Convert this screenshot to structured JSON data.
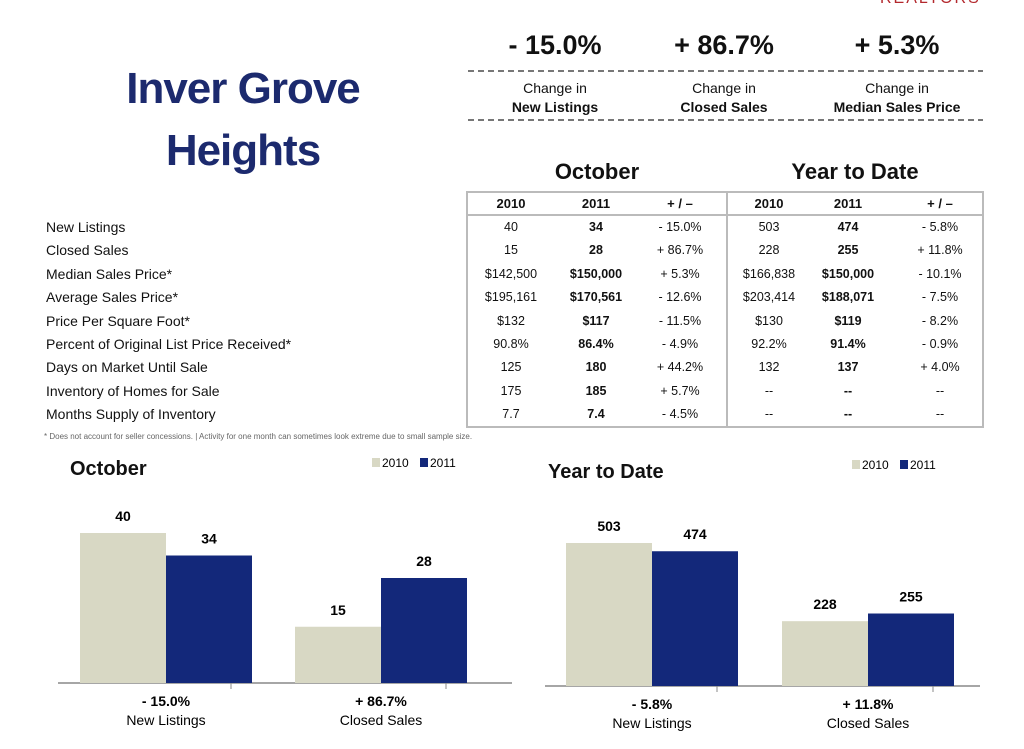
{
  "header": {
    "logo": "REALTORS",
    "title": "Inver Grove Heights"
  },
  "highlights": [
    {
      "value": "- 15.0%",
      "line1": "Change in",
      "line2": "New Listings"
    },
    {
      "value": "+ 86.7%",
      "line1": "Change in",
      "line2": "Closed Sales"
    },
    {
      "value": "+ 5.3%",
      "line1": "Change in",
      "line2": "Median Sales Price"
    }
  ],
  "table": {
    "groups": [
      "October",
      "Year to Date"
    ],
    "columns": [
      "2010",
      "2011",
      "+ / –",
      "2010",
      "2011",
      "+ / –"
    ],
    "rows": [
      [
        "New Listings",
        "40",
        "34",
        "- 15.0%",
        "503",
        "474",
        "- 5.8%"
      ],
      [
        "Closed Sales",
        "15",
        "28",
        "+ 86.7%",
        "228",
        "255",
        "+ 11.8%"
      ],
      [
        "Median Sales Price*",
        "$142,500",
        "$150,000",
        "+ 5.3%",
        "$166,838",
        "$150,000",
        "- 10.1%"
      ],
      [
        "Average Sales Price*",
        "$195,161",
        "$170,561",
        "- 12.6%",
        "$203,414",
        "$188,071",
        "- 7.5%"
      ],
      [
        "Price Per Square Foot*",
        "$132",
        "$117",
        "- 11.5%",
        "$130",
        "$119",
        "- 8.2%"
      ],
      [
        "Percent of Original List Price Received*",
        "90.8%",
        "86.4%",
        "- 4.9%",
        "92.2%",
        "91.4%",
        "- 0.9%"
      ],
      [
        "Days on Market Until Sale",
        "125",
        "180",
        "+ 44.2%",
        "132",
        "137",
        "+ 4.0%"
      ],
      [
        "Inventory of Homes for Sale",
        "175",
        "185",
        "+ 5.7%",
        "--",
        "--",
        "--"
      ],
      [
        "Months Supply of Inventory",
        "7.7",
        "7.4",
        "- 4.5%",
        "--",
        "--",
        "--"
      ]
    ],
    "footnote": "* Does not account for seller concessions.  |  Activity for one month can sometimes look extreme due to small sample size."
  },
  "charts": [
    {
      "type": "bar",
      "title": "October",
      "categories": [
        "New Listings",
        "Closed Sales"
      ],
      "changes": [
        "- 15.0%",
        "+ 86.7%"
      ],
      "series": [
        {
          "name": "2010",
          "color": "#d8d8c4",
          "values": [
            40,
            15
          ]
        },
        {
          "name": "2011",
          "color": "#13287a",
          "values": [
            34,
            28
          ]
        }
      ]
    },
    {
      "type": "bar",
      "title": "Year to Date",
      "categories": [
        "New Listings",
        "Closed Sales"
      ],
      "changes": [
        "- 5.8%",
        "+ 11.8%"
      ],
      "series": [
        {
          "name": "2010",
          "color": "#d8d8c4",
          "values": [
            503,
            228
          ]
        },
        {
          "name": "2011",
          "color": "#13287a",
          "values": [
            474,
            255
          ]
        }
      ]
    }
  ]
}
